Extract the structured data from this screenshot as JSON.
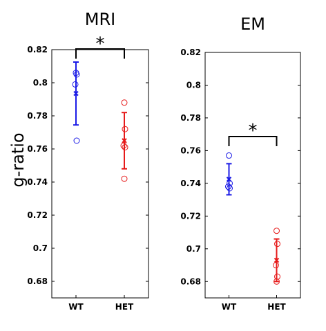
{
  "figure": {
    "ylabel": "g-ratio"
  },
  "colors": {
    "WT": "#1a1ae6",
    "HET": "#e61a1a",
    "axis": "#000000"
  },
  "chart_data": [
    {
      "type": "scatter",
      "title": "MRI",
      "categories": [
        "WT",
        "HET"
      ],
      "yticks": [
        "0.68",
        "0.7",
        "0.72",
        "0.74",
        "0.76",
        "0.78",
        "0.8",
        "0.82"
      ],
      "ylim": [
        0.67,
        0.82
      ],
      "series": [
        {
          "name": "WT",
          "points": [
            0.806,
            0.805,
            0.799,
            0.765
          ],
          "mean": 0.7935,
          "sd_low": 0.7745,
          "sd_high": 0.8125
        },
        {
          "name": "HET",
          "points": [
            0.788,
            0.772,
            0.762,
            0.761,
            0.742
          ],
          "mean": 0.765,
          "sd_low": 0.748,
          "sd_high": 0.782
        }
      ],
      "significance": "*"
    },
    {
      "type": "scatter",
      "title": "EM",
      "categories": [
        "WT",
        "HET"
      ],
      "yticks": [
        "0.68",
        "0.7",
        "0.72",
        "0.74",
        "0.76",
        "0.78",
        "0.8",
        "0.82"
      ],
      "ylim": [
        0.67,
        0.82
      ],
      "series": [
        {
          "name": "WT",
          "points": [
            0.757,
            0.74,
            0.738,
            0.737
          ],
          "mean": 0.7425,
          "sd_low": 0.733,
          "sd_high": 0.752
        },
        {
          "name": "HET",
          "points": [
            0.711,
            0.703,
            0.69,
            0.683,
            0.68
          ],
          "mean": 0.693,
          "sd_low": 0.68,
          "sd_high": 0.706
        }
      ],
      "significance": "*"
    }
  ]
}
